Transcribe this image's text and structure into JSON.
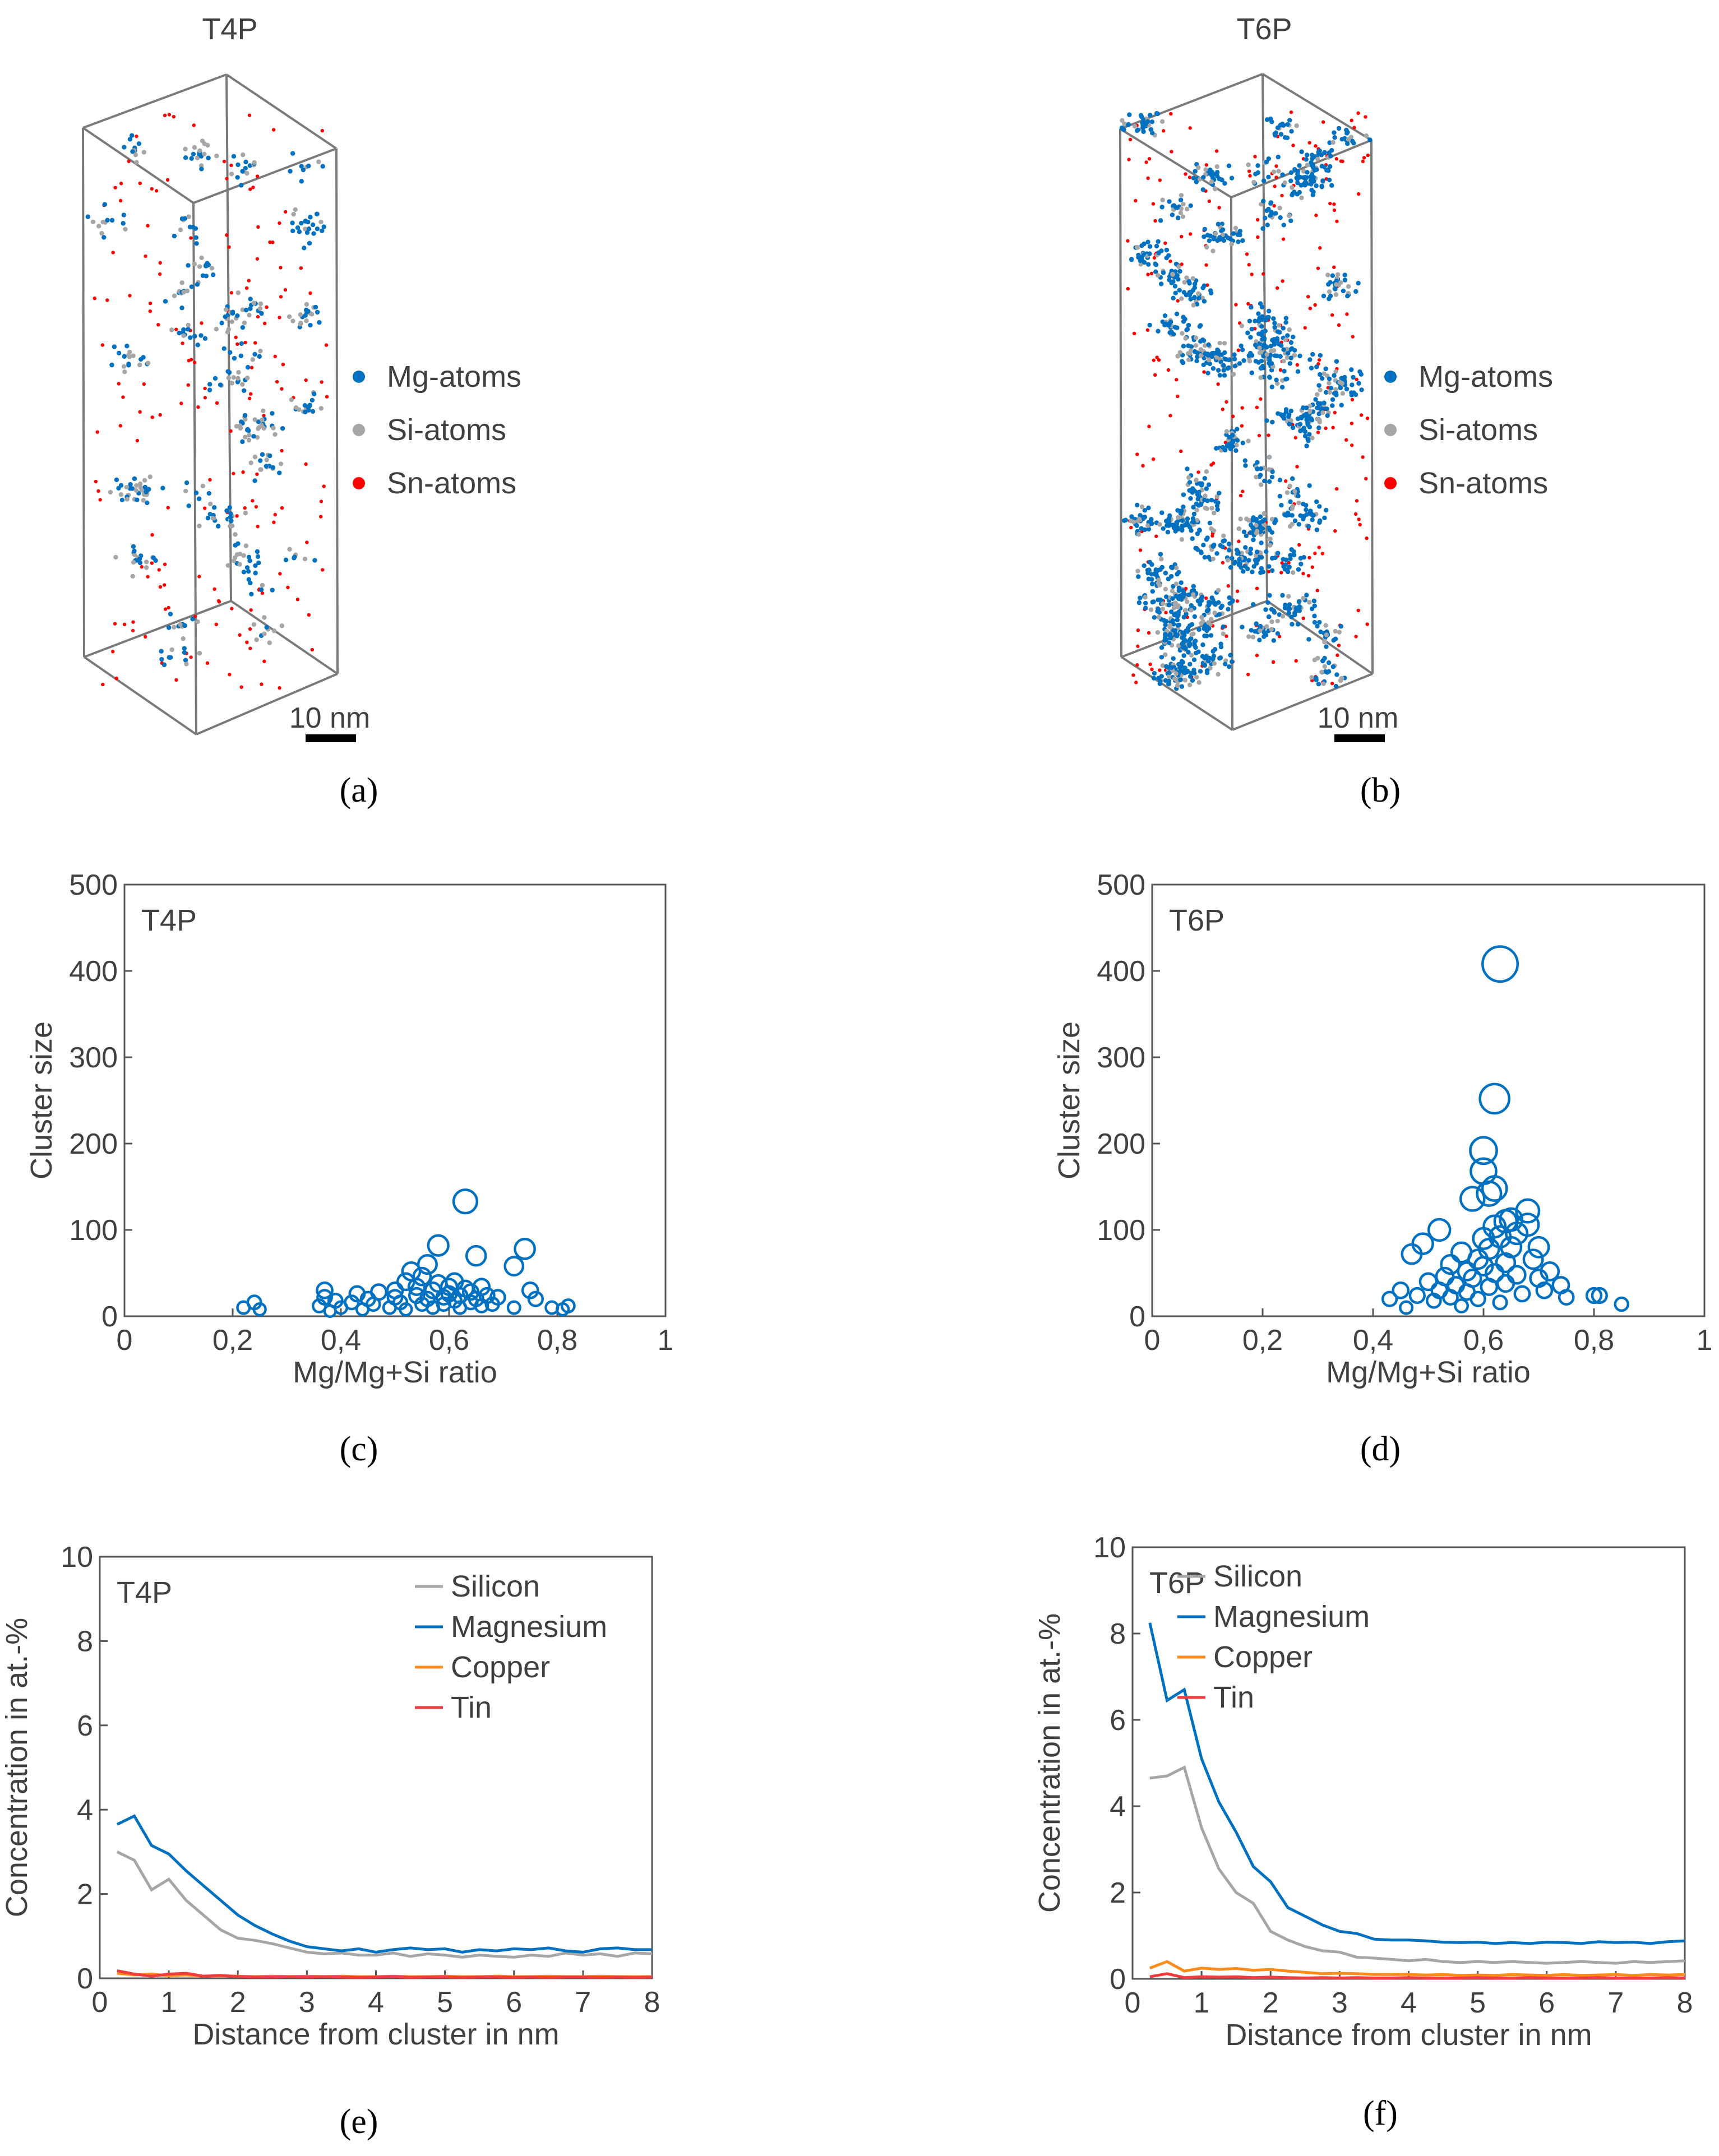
{
  "colors": {
    "mg": "#0070C0",
    "si": "#A6A6A6",
    "sn": "#FF0000",
    "silicon": "#A6A6A6",
    "magnesium": "#0070C0",
    "copper": "#FF8C1A",
    "tin": "#F03C3C",
    "axis": "#555555",
    "text": "#404040"
  },
  "panel_labels": {
    "a": "(a)",
    "b": "(b)",
    "c": "(c)",
    "d": "(d)",
    "e": "(e)",
    "f": "(f)"
  },
  "atom_maps": [
    {
      "title": "T4P",
      "legend": [
        "Mg-atoms",
        "Si-atoms",
        "Sn-atoms"
      ],
      "scale_label": "10 nm",
      "density": "low"
    },
    {
      "title": "T6P",
      "legend": [
        "Mg-atoms",
        "Si-atoms",
        "Sn-atoms"
      ],
      "scale_label": "10 nm",
      "density": "high"
    }
  ],
  "chart_data": [
    {
      "type": "scatter",
      "label": "T4P",
      "xlabel": "Mg/Mg+Si ratio",
      "ylabel": "Cluster size",
      "xlim": [
        0,
        1
      ],
      "ylim": [
        0,
        500
      ],
      "xticks": [
        "0",
        "0,2",
        "0,4",
        "0,6",
        "0,8",
        "1"
      ],
      "yticks": [
        "0",
        "100",
        "200",
        "300",
        "400",
        "500"
      ],
      "points": [
        [
          0.22,
          10
        ],
        [
          0.24,
          16
        ],
        [
          0.25,
          8
        ],
        [
          0.36,
          12
        ],
        [
          0.37,
          22
        ],
        [
          0.37,
          30
        ],
        [
          0.38,
          6
        ],
        [
          0.39,
          18
        ],
        [
          0.4,
          10
        ],
        [
          0.42,
          16
        ],
        [
          0.43,
          26
        ],
        [
          0.44,
          8
        ],
        [
          0.45,
          20
        ],
        [
          0.46,
          14
        ],
        [
          0.47,
          28
        ],
        [
          0.49,
          10
        ],
        [
          0.5,
          22
        ],
        [
          0.5,
          30
        ],
        [
          0.51,
          16
        ],
        [
          0.52,
          40
        ],
        [
          0.52,
          8
        ],
        [
          0.53,
          52
        ],
        [
          0.54,
          24
        ],
        [
          0.54,
          34
        ],
        [
          0.55,
          14
        ],
        [
          0.55,
          46
        ],
        [
          0.56,
          20
        ],
        [
          0.56,
          60
        ],
        [
          0.57,
          30
        ],
        [
          0.57,
          10
        ],
        [
          0.58,
          38
        ],
        [
          0.58,
          82
        ],
        [
          0.59,
          22
        ],
        [
          0.59,
          14
        ],
        [
          0.6,
          34
        ],
        [
          0.6,
          26
        ],
        [
          0.61,
          18
        ],
        [
          0.61,
          40
        ],
        [
          0.62,
          10
        ],
        [
          0.62,
          24
        ],
        [
          0.63,
          133
        ],
        [
          0.63,
          32
        ],
        [
          0.64,
          16
        ],
        [
          0.64,
          28
        ],
        [
          0.65,
          20
        ],
        [
          0.65,
          70
        ],
        [
          0.66,
          12
        ],
        [
          0.66,
          34
        ],
        [
          0.67,
          24
        ],
        [
          0.68,
          14
        ],
        [
          0.69,
          22
        ],
        [
          0.72,
          10
        ],
        [
          0.72,
          58
        ],
        [
          0.74,
          78
        ],
        [
          0.75,
          30
        ],
        [
          0.76,
          20
        ],
        [
          0.79,
          10
        ],
        [
          0.81,
          8
        ],
        [
          0.82,
          12
        ]
      ]
    },
    {
      "type": "scatter",
      "label": "T6P",
      "xlabel": "Mg/Mg+Si ratio",
      "ylabel": "Cluster size",
      "xlim": [
        0,
        1
      ],
      "ylim": [
        0,
        500
      ],
      "xticks": [
        "0",
        "0,2",
        "0,4",
        "0,6",
        "0,8",
        "1"
      ],
      "yticks": [
        "0",
        "100",
        "200",
        "300",
        "400",
        "500"
      ],
      "points": [
        [
          0.43,
          20
        ],
        [
          0.45,
          30
        ],
        [
          0.46,
          10
        ],
        [
          0.47,
          72
        ],
        [
          0.48,
          24
        ],
        [
          0.49,
          84
        ],
        [
          0.5,
          40
        ],
        [
          0.51,
          18
        ],
        [
          0.52,
          100
        ],
        [
          0.52,
          30
        ],
        [
          0.53,
          46
        ],
        [
          0.54,
          60
        ],
        [
          0.54,
          22
        ],
        [
          0.55,
          36
        ],
        [
          0.56,
          74
        ],
        [
          0.56,
          12
        ],
        [
          0.57,
          52
        ],
        [
          0.57,
          28
        ],
        [
          0.58,
          136
        ],
        [
          0.58,
          44
        ],
        [
          0.59,
          66
        ],
        [
          0.59,
          20
        ],
        [
          0.6,
          192
        ],
        [
          0.6,
          168
        ],
        [
          0.6,
          90
        ],
        [
          0.6,
          58
        ],
        [
          0.61,
          142
        ],
        [
          0.61,
          34
        ],
        [
          0.61,
          78
        ],
        [
          0.62,
          148
        ],
        [
          0.62,
          252
        ],
        [
          0.62,
          104
        ],
        [
          0.62,
          50
        ],
        [
          0.63,
          408
        ],
        [
          0.63,
          92
        ],
        [
          0.63,
          16
        ],
        [
          0.64,
          110
        ],
        [
          0.64,
          62
        ],
        [
          0.64,
          38
        ],
        [
          0.65,
          112
        ],
        [
          0.65,
          80
        ],
        [
          0.66,
          96
        ],
        [
          0.66,
          48
        ],
        [
          0.67,
          26
        ],
        [
          0.68,
          122
        ],
        [
          0.68,
          106
        ],
        [
          0.69,
          66
        ],
        [
          0.7,
          80
        ],
        [
          0.7,
          44
        ],
        [
          0.71,
          30
        ],
        [
          0.72,
          52
        ],
        [
          0.74,
          36
        ],
        [
          0.75,
          22
        ],
        [
          0.8,
          24
        ],
        [
          0.81,
          24
        ],
        [
          0.85,
          14
        ]
      ]
    },
    {
      "type": "line",
      "label": "T4P",
      "xlabel": "Distance from cluster in nm",
      "ylabel": "Concentration in at.-%",
      "xlim": [
        0,
        8
      ],
      "ylim": [
        0,
        10
      ],
      "xticks": [
        "0",
        "1",
        "2",
        "3",
        "4",
        "5",
        "6",
        "7",
        "8"
      ],
      "yticks": [
        "0",
        "2",
        "4",
        "6",
        "8",
        "10"
      ],
      "x": [
        0.25,
        0.5,
        0.75,
        1,
        1.25,
        1.5,
        1.75,
        2,
        2.25,
        2.5,
        2.75,
        3,
        3.25,
        3.5,
        3.75,
        4,
        4.25,
        4.5,
        4.75,
        5,
        5.25,
        5.5,
        5.75,
        6,
        6.25,
        6.5,
        6.75,
        7,
        7.25,
        7.5,
        7.75,
        8
      ],
      "series": [
        {
          "name": "Silicon",
          "color_key": "silicon",
          "values": [
            3.0,
            2.8,
            2.1,
            2.35,
            1.85,
            1.5,
            1.15,
            0.95,
            0.9,
            0.82,
            0.72,
            0.62,
            0.58,
            0.6,
            0.55,
            0.55,
            0.6,
            0.52,
            0.58,
            0.55,
            0.5,
            0.55,
            0.52,
            0.5,
            0.55,
            0.52,
            0.6,
            0.55,
            0.58,
            0.52,
            0.6,
            0.58
          ]
        },
        {
          "name": "Magnesium",
          "color_key": "magnesium",
          "values": [
            3.65,
            3.85,
            3.15,
            2.95,
            2.55,
            2.2,
            1.85,
            1.5,
            1.25,
            1.05,
            0.88,
            0.75,
            0.7,
            0.65,
            0.7,
            0.62,
            0.68,
            0.72,
            0.68,
            0.7,
            0.62,
            0.68,
            0.65,
            0.7,
            0.68,
            0.72,
            0.65,
            0.62,
            0.7,
            0.72,
            0.68,
            0.68
          ]
        },
        {
          "name": "Copper",
          "color_key": "copper",
          "values": [
            0.12,
            0.08,
            0.1,
            0.06,
            0.08,
            0.05,
            0.06,
            0.05,
            0.04,
            0.05,
            0.04,
            0.05,
            0.04,
            0.05,
            0.04,
            0.04,
            0.05,
            0.04,
            0.04,
            0.05,
            0.04,
            0.04,
            0.05,
            0.04,
            0.04,
            0.05,
            0.04,
            0.04,
            0.05,
            0.04,
            0.04,
            0.04
          ]
        },
        {
          "name": "Tin",
          "color_key": "tin",
          "values": [
            0.18,
            0.1,
            0.05,
            0.1,
            0.12,
            0.05,
            0.07,
            0.04,
            0.03,
            0.03,
            0.04,
            0.03,
            0.04,
            0.03,
            0.02,
            0.03,
            0.04,
            0.02,
            0.03,
            0.03,
            0.02,
            0.03,
            0.03,
            0.02,
            0.03,
            0.02,
            0.03,
            0.03,
            0.02,
            0.03,
            0.02,
            0.03
          ]
        }
      ]
    },
    {
      "type": "line",
      "label": "T6P",
      "xlabel": "Distance from cluster in nm",
      "ylabel": "Concentration in at.-%",
      "xlim": [
        0,
        8
      ],
      "ylim": [
        0,
        10
      ],
      "xticks": [
        "0",
        "1",
        "2",
        "3",
        "4",
        "5",
        "6",
        "7",
        "8"
      ],
      "yticks": [
        "0",
        "2",
        "4",
        "6",
        "8",
        "10"
      ],
      "x": [
        0.25,
        0.5,
        0.75,
        1,
        1.25,
        1.5,
        1.75,
        2,
        2.25,
        2.5,
        2.75,
        3,
        3.25,
        3.5,
        3.75,
        4,
        4.25,
        4.5,
        4.75,
        5,
        5.25,
        5.5,
        5.75,
        6,
        6.25,
        6.5,
        6.75,
        7,
        7.25,
        7.5,
        7.75,
        8
      ],
      "series": [
        {
          "name": "Silicon",
          "color_key": "silicon",
          "values": [
            4.65,
            4.7,
            4.9,
            3.5,
            2.55,
            2.0,
            1.75,
            1.1,
            0.9,
            0.75,
            0.65,
            0.62,
            0.5,
            0.48,
            0.45,
            0.42,
            0.45,
            0.4,
            0.38,
            0.4,
            0.38,
            0.4,
            0.38,
            0.36,
            0.38,
            0.4,
            0.38,
            0.36,
            0.4,
            0.38,
            0.4,
            0.42
          ]
        },
        {
          "name": "Magnesium",
          "color_key": "magnesium",
          "values": [
            8.25,
            6.45,
            6.7,
            5.1,
            4.1,
            3.4,
            2.6,
            2.25,
            1.65,
            1.45,
            1.25,
            1.1,
            1.05,
            0.92,
            0.9,
            0.9,
            0.88,
            0.85,
            0.84,
            0.85,
            0.82,
            0.84,
            0.82,
            0.85,
            0.84,
            0.82,
            0.86,
            0.84,
            0.85,
            0.82,
            0.86,
            0.88
          ]
        },
        {
          "name": "Copper",
          "color_key": "copper",
          "values": [
            0.25,
            0.4,
            0.18,
            0.25,
            0.22,
            0.24,
            0.2,
            0.22,
            0.18,
            0.15,
            0.12,
            0.13,
            0.12,
            0.1,
            0.1,
            0.1,
            0.09,
            0.1,
            0.08,
            0.09,
            0.08,
            0.1,
            0.09,
            0.08,
            0.1,
            0.08,
            0.09,
            0.1,
            0.08,
            0.1,
            0.09,
            0.1
          ]
        },
        {
          "name": "Tin",
          "color_key": "tin",
          "values": [
            0.05,
            0.12,
            0.03,
            0.05,
            0.04,
            0.05,
            0.03,
            0.04,
            0.03,
            0.02,
            0.03,
            0.02,
            0.03,
            0.02,
            0.02,
            0.03,
            0.02,
            0.02,
            0.02,
            0.03,
            0.02,
            0.02,
            0.03,
            0.02,
            0.02,
            0.02,
            0.03,
            0.02,
            0.02,
            0.02,
            0.03,
            0.02
          ]
        }
      ]
    }
  ]
}
